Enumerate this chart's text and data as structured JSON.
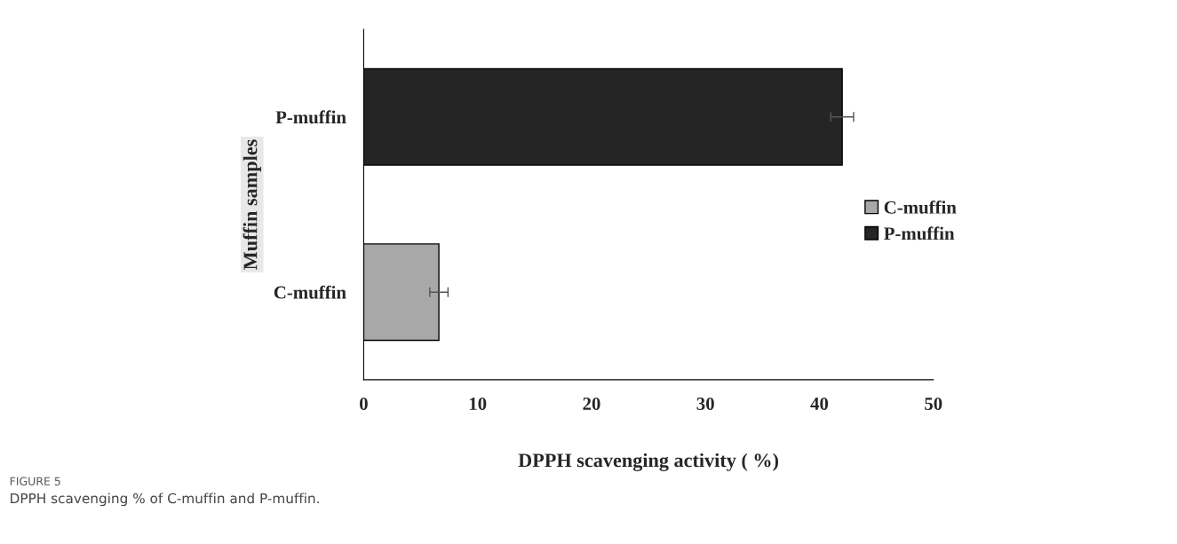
{
  "chart_data": {
    "type": "bar",
    "orientation": "horizontal",
    "categories": [
      "P-muffin",
      "C-muffin"
    ],
    "series": [
      {
        "name": "C-muffin",
        "color": "#a8a8a8",
        "values": [
          null,
          6.6
        ],
        "errors": [
          null,
          0.8
        ]
      },
      {
        "name": "P-muffin",
        "color": "#252525",
        "values": [
          42.0,
          null
        ],
        "errors": [
          1.0,
          null
        ]
      }
    ],
    "xlabel": "DPPH scavenging activity ( %)",
    "ylabel": "Muffin samples",
    "xlim": [
      0,
      50
    ],
    "xticks": [
      0,
      10,
      20,
      30,
      40,
      50
    ],
    "grid": false,
    "legend": "right",
    "annotations": [
      "FIGURE 5",
      "DPPH scavenging % of C-muffin and P-muffin."
    ]
  }
}
